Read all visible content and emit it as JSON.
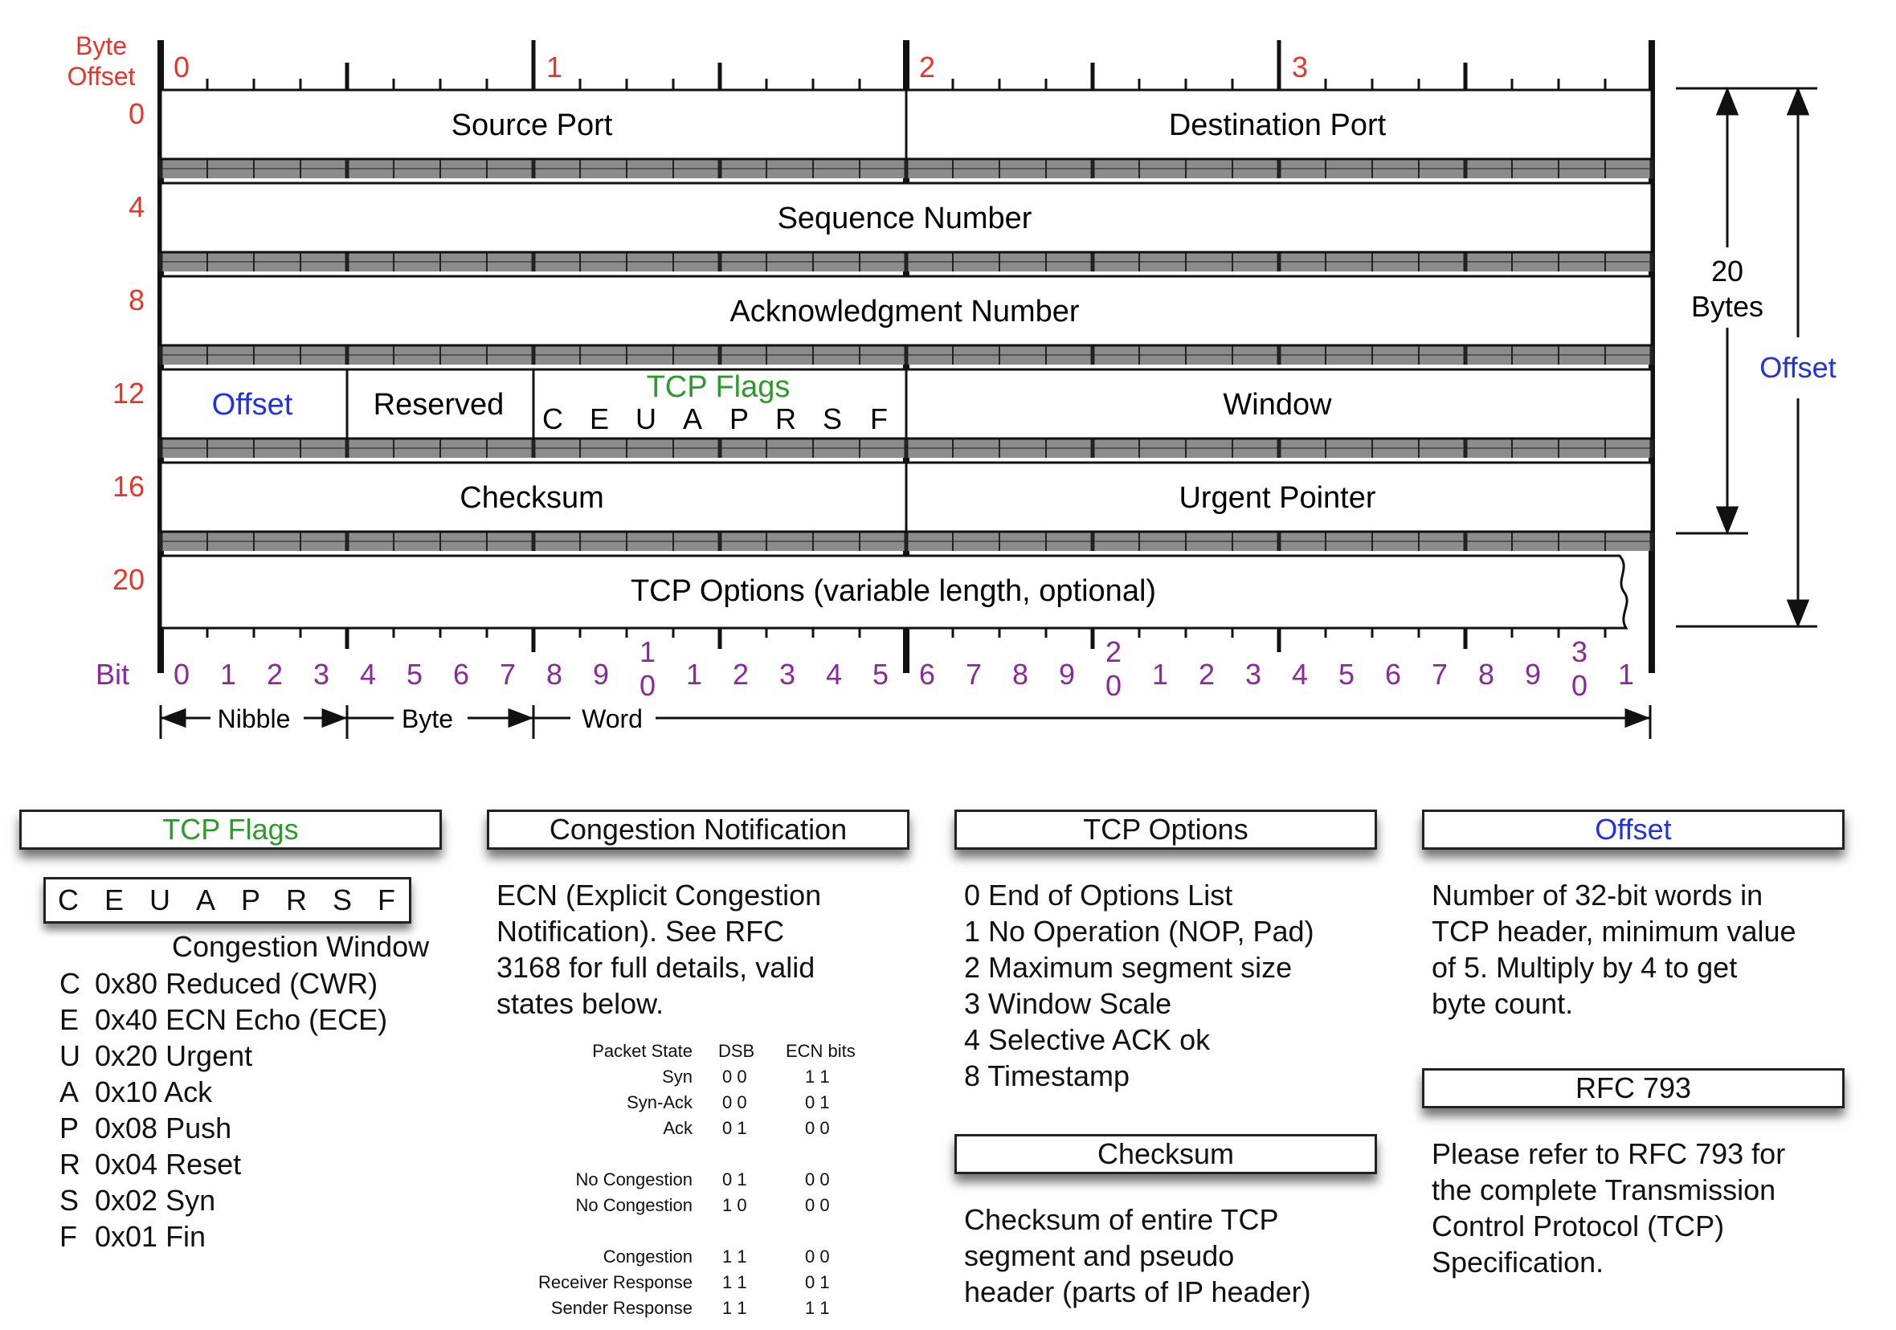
{
  "byte_offset_label": [
    "Byte",
    "Offset"
  ],
  "byte_markers": [
    "0",
    "1",
    "2",
    "3"
  ],
  "row_offsets": [
    "0",
    "4",
    "8",
    "12",
    "16",
    "20"
  ],
  "fields": {
    "source_port": "Source Port",
    "destination_port": "Destination Port",
    "sequence_number": "Sequence Number",
    "acknowledgment_number": "Acknowledgment Number",
    "offset": "Offset",
    "reserved": "Reserved",
    "tcp_flags": "TCP Flags",
    "flag_letters": [
      "C",
      "E",
      "U",
      "A",
      "P",
      "R",
      "S",
      "F"
    ],
    "window": "Window",
    "checksum": "Checksum",
    "urgent_pointer": "Urgent Pointer",
    "tcp_options": "TCP Options (variable length, optional)"
  },
  "bit_label": "Bit",
  "bit_numbers": [
    [
      "0"
    ],
    [
      "1"
    ],
    [
      "2"
    ],
    [
      "3"
    ],
    [
      "4"
    ],
    [
      "5"
    ],
    [
      "6"
    ],
    [
      "7"
    ],
    [
      "8"
    ],
    [
      "9"
    ],
    [
      "1",
      "0"
    ],
    [
      "1"
    ],
    [
      "2"
    ],
    [
      "3"
    ],
    [
      "4"
    ],
    [
      "5"
    ],
    [
      "6"
    ],
    [
      "7"
    ],
    [
      "8"
    ],
    [
      "9"
    ],
    [
      "2",
      "0"
    ],
    [
      "1"
    ],
    [
      "2"
    ],
    [
      "3"
    ],
    [
      "4"
    ],
    [
      "5"
    ],
    [
      "6"
    ],
    [
      "7"
    ],
    [
      "8"
    ],
    [
      "9"
    ],
    [
      "3",
      "0"
    ],
    [
      "1"
    ]
  ],
  "scale_labels": {
    "nibble": "Nibble",
    "byte": "Byte",
    "word": "Word"
  },
  "right_labels": {
    "bytes_20": [
      "20",
      "Bytes"
    ],
    "offset": "Offset"
  },
  "colors": {
    "red": "#e8352a",
    "blue": "#2233dd",
    "green": "#2e9a2e",
    "purple": "#8a2a9a"
  },
  "legend": {
    "tcp_flags": {
      "title": "TCP Flags",
      "box_letters": [
        "C",
        "E",
        "U",
        "A",
        "P",
        "R",
        "S",
        "F"
      ],
      "subtitle": "Congestion Window",
      "items": [
        {
          "letter": "C",
          "text": "0x80 Reduced (CWR)"
        },
        {
          "letter": "E",
          "text": "0x40 ECN Echo (ECE)"
        },
        {
          "letter": "U",
          "text": "0x20 Urgent"
        },
        {
          "letter": "A",
          "text": "0x10 Ack"
        },
        {
          "letter": "P",
          "text": "0x08 Push"
        },
        {
          "letter": "R",
          "text": "0x04 Reset"
        },
        {
          "letter": "S",
          "text": "0x02 Syn"
        },
        {
          "letter": "F",
          "text": "0x01 Fin"
        }
      ]
    },
    "congestion": {
      "title": "Congestion Notification",
      "lines": [
        "ECN (Explicit Congestion",
        "Notification).  See RFC",
        "3168 for full details, valid",
        "states below."
      ],
      "table_header": {
        "state": "Packet State",
        "dsb": "DSB",
        "ecn": "ECN bits"
      },
      "rows": [
        {
          "state": "Syn",
          "dsb": "0 0",
          "ecn": "1 1"
        },
        {
          "state": "Syn-Ack",
          "dsb": "0 0",
          "ecn": "0 1"
        },
        {
          "state": "Ack",
          "dsb": "0 1",
          "ecn": "0 0"
        },
        {
          "state": "No Congestion",
          "dsb": "0 1",
          "ecn": "0 0"
        },
        {
          "state": "No Congestion",
          "dsb": "1 0",
          "ecn": "0 0"
        },
        {
          "state": "Congestion",
          "dsb": "1 1",
          "ecn": "0 0"
        },
        {
          "state": "Receiver Response",
          "dsb": "1 1",
          "ecn": "0 1"
        },
        {
          "state": "Sender Response",
          "dsb": "1 1",
          "ecn": "1 1"
        }
      ]
    },
    "tcp_options": {
      "title": "TCP Options",
      "lines": [
        "0 End of Options List",
        "1 No Operation (NOP, Pad)",
        "2 Maximum segment size",
        "3 Window Scale",
        "4 Selective ACK ok",
        "8 Timestamp"
      ]
    },
    "checksum": {
      "title": "Checksum",
      "lines": [
        "Checksum of entire TCP",
        "segment and pseudo",
        "header (parts of IP header)"
      ]
    },
    "offset": {
      "title": "Offset",
      "lines": [
        "Number of 32-bit words in",
        "TCP header, minimum value",
        "of 5.  Multiply by 4 to get",
        "byte count."
      ]
    },
    "rfc": {
      "title": "RFC 793",
      "lines": [
        "Please refer to RFC 793 for",
        "the complete Transmission",
        "Control Protocol (TCP)",
        "Specification."
      ]
    }
  }
}
